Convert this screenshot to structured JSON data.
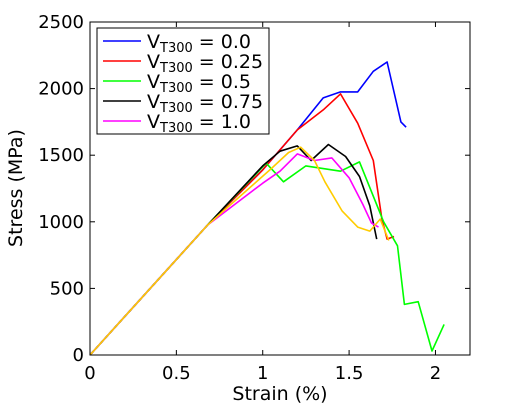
{
  "chart_data": {
    "type": "line",
    "title": "",
    "xlabel": "Strain (%)",
    "ylabel": "Stress (MPa)",
    "xlim": [
      0,
      2.2
    ],
    "ylim": [
      0,
      2500
    ],
    "xticks": [
      0,
      0.5,
      1,
      1.5,
      2
    ],
    "xtick_labels": [
      "0",
      "0.5",
      "1",
      "1.5",
      "2"
    ],
    "yticks": [
      0,
      500,
      1000,
      1500,
      2000,
      2500
    ],
    "ytick_labels": [
      "0",
      "500",
      "1000",
      "1500",
      "2000",
      "2500"
    ],
    "grid": false,
    "legend_position": "top-left",
    "series": [
      {
        "name": "V_T300 = 0.0",
        "legend_main": "V",
        "legend_sub": "T300",
        "legend_value": " = 0.0",
        "color": "#0000ff",
        "points": [
          [
            0,
            0
          ],
          [
            0.68,
            975
          ],
          [
            1.0,
            1390
          ],
          [
            1.2,
            1690
          ],
          [
            1.35,
            1930
          ],
          [
            1.45,
            1975
          ],
          [
            1.55,
            1975
          ],
          [
            1.64,
            2130
          ],
          [
            1.72,
            2200
          ],
          [
            1.8,
            1750
          ],
          [
            1.83,
            1710
          ]
        ]
      },
      {
        "name": "V_T300 = 0.25",
        "legend_main": "V",
        "legend_sub": "T300",
        "legend_value": " = 0.25",
        "color": "#ff0000",
        "points": [
          [
            0,
            0
          ],
          [
            0.68,
            975
          ],
          [
            1.0,
            1390
          ],
          [
            1.2,
            1690
          ],
          [
            1.35,
            1840
          ],
          [
            1.45,
            1960
          ],
          [
            1.55,
            1740
          ],
          [
            1.64,
            1460
          ],
          [
            1.69,
            1020
          ],
          [
            1.72,
            870
          ],
          [
            1.76,
            890
          ]
        ]
      },
      {
        "name": "V_T300 = 0.5",
        "legend_main": "V",
        "legend_sub": "T300",
        "legend_value": " = 0.5",
        "color": "#00ff00",
        "points": [
          [
            0,
            0
          ],
          [
            0.68,
            975
          ],
          [
            1.02,
            1440
          ],
          [
            1.12,
            1300
          ],
          [
            1.25,
            1420
          ],
          [
            1.45,
            1380
          ],
          [
            1.56,
            1450
          ],
          [
            1.7,
            1000
          ],
          [
            1.78,
            820
          ],
          [
            1.82,
            380
          ],
          [
            1.9,
            400
          ],
          [
            1.98,
            30
          ],
          [
            2.05,
            230
          ]
        ]
      },
      {
        "name": "V_T300 = 0.75",
        "legend_main": "V",
        "legend_sub": "T300",
        "legend_value": " = 0.75",
        "color": "#000000",
        "points": [
          [
            0,
            0
          ],
          [
            0.68,
            975
          ],
          [
            1.0,
            1420
          ],
          [
            1.1,
            1530
          ],
          [
            1.2,
            1570
          ],
          [
            1.28,
            1460
          ],
          [
            1.38,
            1580
          ],
          [
            1.48,
            1490
          ],
          [
            1.56,
            1340
          ],
          [
            1.62,
            1120
          ],
          [
            1.66,
            870
          ]
        ]
      },
      {
        "name": "V_T300 = 1.0",
        "legend_main": "V",
        "legend_sub": "T300",
        "legend_value": " = 1.0",
        "color": "#ff00ff",
        "points": [
          [
            0,
            0
          ],
          [
            0.68,
            975
          ],
          [
            1.0,
            1290
          ],
          [
            1.1,
            1380
          ],
          [
            1.2,
            1510
          ],
          [
            1.3,
            1460
          ],
          [
            1.4,
            1480
          ],
          [
            1.5,
            1330
          ],
          [
            1.58,
            1130
          ],
          [
            1.63,
            990
          ],
          [
            1.67,
            960
          ]
        ]
      },
      {
        "name": "",
        "color": "#ffcc00",
        "in_legend": false,
        "points": [
          [
            0,
            0
          ],
          [
            0.68,
            975
          ],
          [
            1.05,
            1400
          ],
          [
            1.15,
            1520
          ],
          [
            1.22,
            1560
          ],
          [
            1.3,
            1460
          ],
          [
            1.36,
            1300
          ],
          [
            1.46,
            1080
          ],
          [
            1.55,
            960
          ],
          [
            1.62,
            930
          ],
          [
            1.68,
            1020
          ],
          [
            1.73,
            860
          ]
        ]
      }
    ]
  }
}
